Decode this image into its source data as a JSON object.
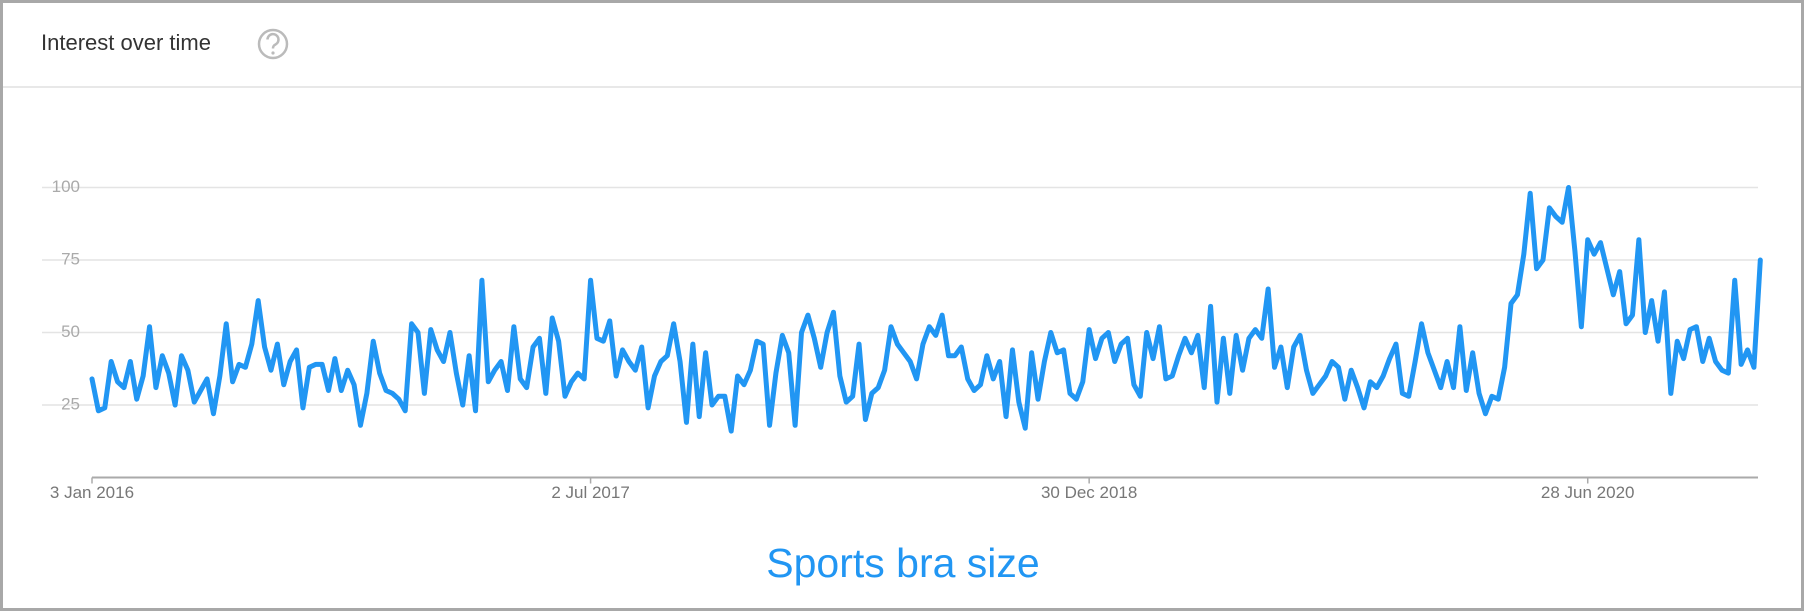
{
  "chart_data": {
    "type": "line",
    "title": "Interest over time",
    "categories": [
      "3 Jan 2016",
      null,
      null,
      null,
      null,
      null,
      null,
      null,
      null,
      null,
      null,
      null,
      null,
      null,
      null,
      null,
      null,
      null,
      null,
      null,
      null,
      null,
      null,
      null,
      null,
      null,
      null,
      null,
      null,
      null,
      null,
      null,
      null,
      null,
      null,
      null,
      null,
      null,
      null,
      null,
      null,
      null,
      null,
      null,
      null,
      null,
      null,
      null,
      null,
      null,
      null,
      null,
      null,
      null,
      null,
      null,
      null,
      null,
      null,
      null,
      null,
      null,
      null,
      null,
      null,
      null,
      null,
      null,
      null,
      null,
      null,
      null,
      null,
      null,
      null,
      null,
      null,
      null,
      "2 Jul 2017",
      null,
      null,
      null,
      null,
      null,
      null,
      null,
      null,
      null,
      null,
      null,
      null,
      null,
      null,
      null,
      null,
      null,
      null,
      null,
      null,
      null,
      null,
      null,
      null,
      null,
      null,
      null,
      null,
      null,
      null,
      null,
      null,
      null,
      null,
      null,
      null,
      null,
      null,
      null,
      null,
      null,
      null,
      null,
      null,
      null,
      null,
      null,
      null,
      null,
      null,
      null,
      null,
      null,
      null,
      null,
      null,
      null,
      null,
      null,
      null,
      null,
      null,
      null,
      null,
      null,
      null,
      null,
      null,
      null,
      null,
      null,
      null,
      null,
      null,
      null,
      null,
      null,
      "30 Dec 2018",
      null,
      null,
      null,
      null,
      null,
      null,
      null,
      null,
      null,
      null,
      null,
      null,
      null,
      null,
      null,
      null,
      null,
      null,
      null,
      null,
      null,
      null,
      null,
      null,
      null,
      null,
      null,
      null,
      null,
      null,
      null,
      null,
      null,
      null,
      null,
      null,
      null,
      null,
      null,
      null,
      null,
      null,
      null,
      null,
      null,
      null,
      null,
      null,
      null,
      null,
      null,
      null,
      null,
      null,
      null,
      null,
      null,
      null,
      null,
      null,
      null,
      null,
      null,
      null,
      null,
      null,
      null,
      null,
      null,
      null,
      null,
      null,
      null,
      null,
      null,
      null,
      null,
      "28 Jun 2020",
      null,
      null,
      null,
      null,
      null,
      null,
      null,
      null,
      null,
      null,
      null,
      null,
      null,
      null,
      null,
      null,
      null,
      null,
      null,
      null,
      null,
      null,
      null,
      null,
      null,
      null,
      null
    ],
    "series": [
      {
        "name": "Sports bra size",
        "color": "#2196f3",
        "values": [
          34,
          23,
          24,
          40,
          33,
          31,
          40,
          27,
          35,
          52,
          31,
          42,
          36,
          25,
          42,
          37,
          26,
          30,
          34,
          22,
          35,
          53,
          33,
          39,
          38,
          46,
          61,
          45,
          37,
          46,
          32,
          40,
          44,
          24,
          38,
          39,
          39,
          30,
          41,
          30,
          37,
          32,
          18,
          29,
          47,
          36,
          30,
          29,
          27,
          23,
          53,
          50,
          29,
          51,
          44,
          40,
          50,
          36,
          25,
          42,
          23,
          68,
          33,
          37,
          40,
          30,
          52,
          34,
          31,
          45,
          48,
          29,
          55,
          47,
          28,
          33,
          36,
          34,
          68,
          48,
          47,
          54,
          35,
          44,
          40,
          37,
          45,
          24,
          35,
          40,
          42,
          53,
          40,
          19,
          46,
          21,
          43,
          25,
          28,
          28,
          16,
          35,
          32,
          37,
          47,
          46,
          18,
          36,
          49,
          43,
          18,
          50,
          56,
          48,
          38,
          50,
          57,
          35,
          26,
          28,
          46,
          20,
          29,
          31,
          37,
          52,
          46,
          43,
          40,
          34,
          46,
          52,
          49,
          56,
          42,
          42,
          45,
          34,
          30,
          32,
          42,
          34,
          40,
          21,
          44,
          26,
          17,
          43,
          27,
          40,
          50,
          43,
          44,
          29,
          27,
          33,
          51,
          41,
          48,
          50,
          40,
          46,
          48,
          32,
          28,
          50,
          41,
          52,
          34,
          35,
          42,
          48,
          43,
          49,
          31,
          59,
          26,
          48,
          29,
          49,
          37,
          48,
          51,
          48,
          65,
          38,
          45,
          31,
          45,
          49,
          37,
          29,
          32,
          35,
          40,
          38,
          27,
          37,
          31,
          24,
          33,
          31,
          35,
          41,
          46,
          29,
          28,
          40,
          53,
          43,
          37,
          31,
          40,
          31,
          52,
          30,
          43,
          29,
          22,
          28,
          27,
          38,
          60,
          63,
          77,
          98,
          72,
          75,
          93,
          90,
          88,
          100,
          78,
          52,
          82,
          77,
          81,
          72,
          63,
          71,
          53,
          56,
          82,
          50,
          61,
          47,
          64,
          29,
          47,
          41,
          51,
          52,
          40,
          48,
          40,
          37,
          36,
          68,
          39,
          44,
          38,
          75
        ]
      }
    ],
    "ylim": [
      0,
      100
    ],
    "yticks": [
      25,
      50,
      75,
      100
    ],
    "grid": true
  }
}
